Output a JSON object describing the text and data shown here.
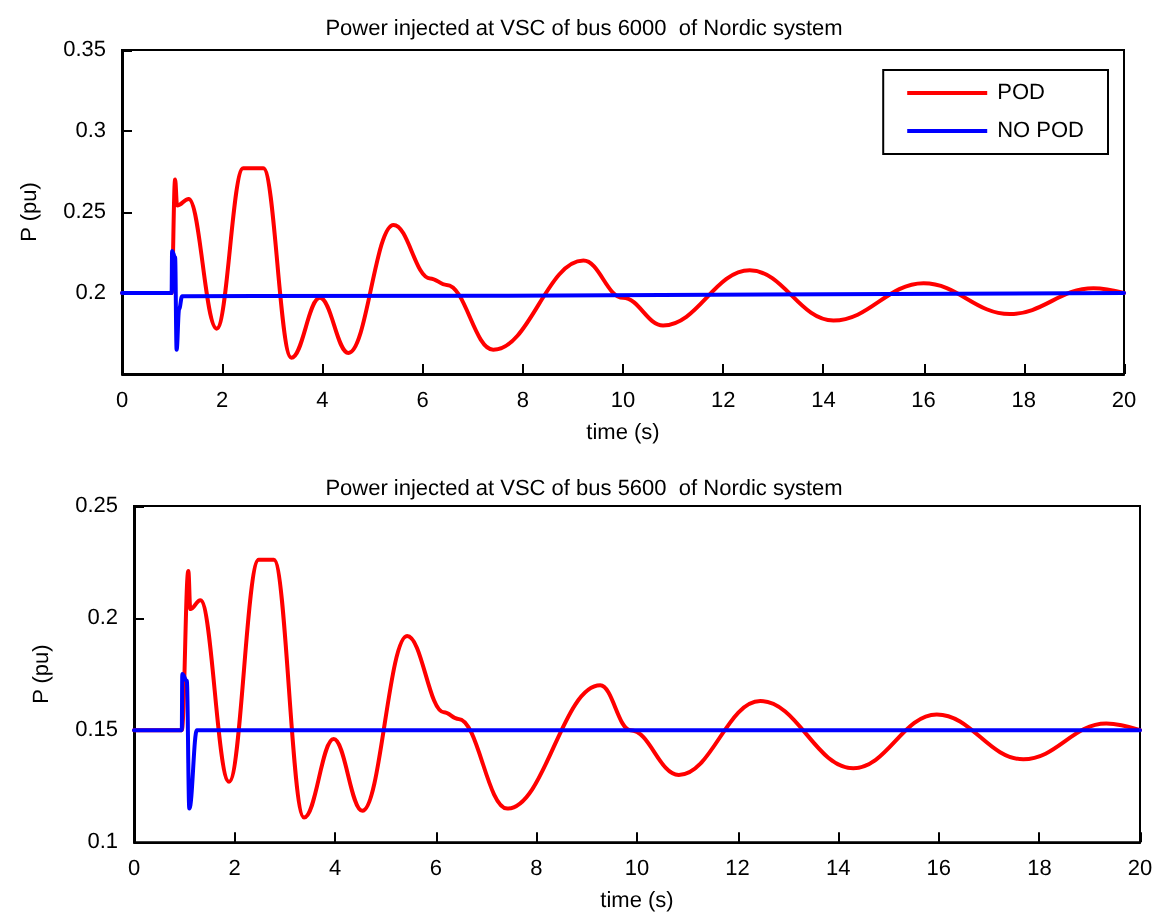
{
  "chart_data": [
    {
      "type": "line",
      "title": "Power injected at VSC of bus 6000  of Nordic system",
      "xlabel": "time (s)",
      "ylabel": "P (pu)",
      "xlim": [
        0,
        20
      ],
      "xticks": [
        0,
        2,
        4,
        6,
        8,
        10,
        12,
        14,
        16,
        18,
        20
      ],
      "ylim": [
        0.15,
        0.35
      ],
      "yticks": [
        0.2,
        0.25,
        0.3,
        0.35
      ],
      "grid": false,
      "legend": "top right",
      "line_style": "solid",
      "marker": "none",
      "series": [
        {
          "name": "POD",
          "color": "#ff0000",
          "x": [
            0,
            0.99,
            1.06,
            1.1,
            1.33,
            1.89,
            2.42,
            2.82,
            3.38,
            3.95,
            4.52,
            5.42,
            6.15,
            6.48,
            7.41,
            9.21,
            10.0,
            10.8,
            12.53,
            14.2,
            16.0,
            17.72,
            19.39,
            20
          ],
          "values": [
            0.2,
            0.2,
            0.27,
            0.254,
            0.258,
            0.178,
            0.277,
            0.277,
            0.16,
            0.197,
            0.163,
            0.242,
            0.209,
            0.205,
            0.165,
            0.22,
            0.197,
            0.18,
            0.214,
            0.183,
            0.206,
            0.187,
            0.203,
            0.2
          ]
        },
        {
          "name": "NO POD",
          "color": "#0000ff",
          "x": [
            0,
            0.99,
            1.0,
            1.06,
            1.09,
            1.14,
            1.2,
            20
          ],
          "values": [
            0.2,
            0.2,
            0.226,
            0.222,
            0.165,
            0.19,
            0.198,
            0.2
          ]
        }
      ]
    },
    {
      "type": "line",
      "title": "Power injected at VSC of bus 5600  of Nordic system",
      "xlabel": "time (s)",
      "ylabel": "P (pu)",
      "xlim": [
        0,
        20
      ],
      "xticks": [
        0,
        2,
        4,
        6,
        8,
        10,
        12,
        14,
        16,
        18,
        20
      ],
      "ylim": [
        0.1,
        0.25
      ],
      "yticks": [
        0.1,
        0.15,
        0.2,
        0.25
      ],
      "grid": false,
      "legend": false,
      "line_style": "solid",
      "marker": "none",
      "series": [
        {
          "color": "#ff0000",
          "x": [
            0,
            0.95,
            1.08,
            1.12,
            1.32,
            1.89,
            2.48,
            2.78,
            3.38,
            3.97,
            4.54,
            5.43,
            6.16,
            6.45,
            7.42,
            9.27,
            9.87,
            10.83,
            12.45,
            14.3,
            15.96,
            17.68,
            19.33,
            20
          ],
          "values": [
            0.15,
            0.15,
            0.221,
            0.204,
            0.208,
            0.127,
            0.226,
            0.226,
            0.111,
            0.146,
            0.114,
            0.192,
            0.158,
            0.155,
            0.115,
            0.17,
            0.15,
            0.13,
            0.163,
            0.133,
            0.157,
            0.137,
            0.153,
            0.15
          ]
        },
        {
          "color": "#0000ff",
          "x": [
            0,
            0.95,
            0.96,
            1.05,
            1.1,
            1.25,
            20
          ],
          "values": [
            0.15,
            0.15,
            0.175,
            0.172,
            0.115,
            0.15,
            0.15
          ]
        }
      ]
    }
  ]
}
